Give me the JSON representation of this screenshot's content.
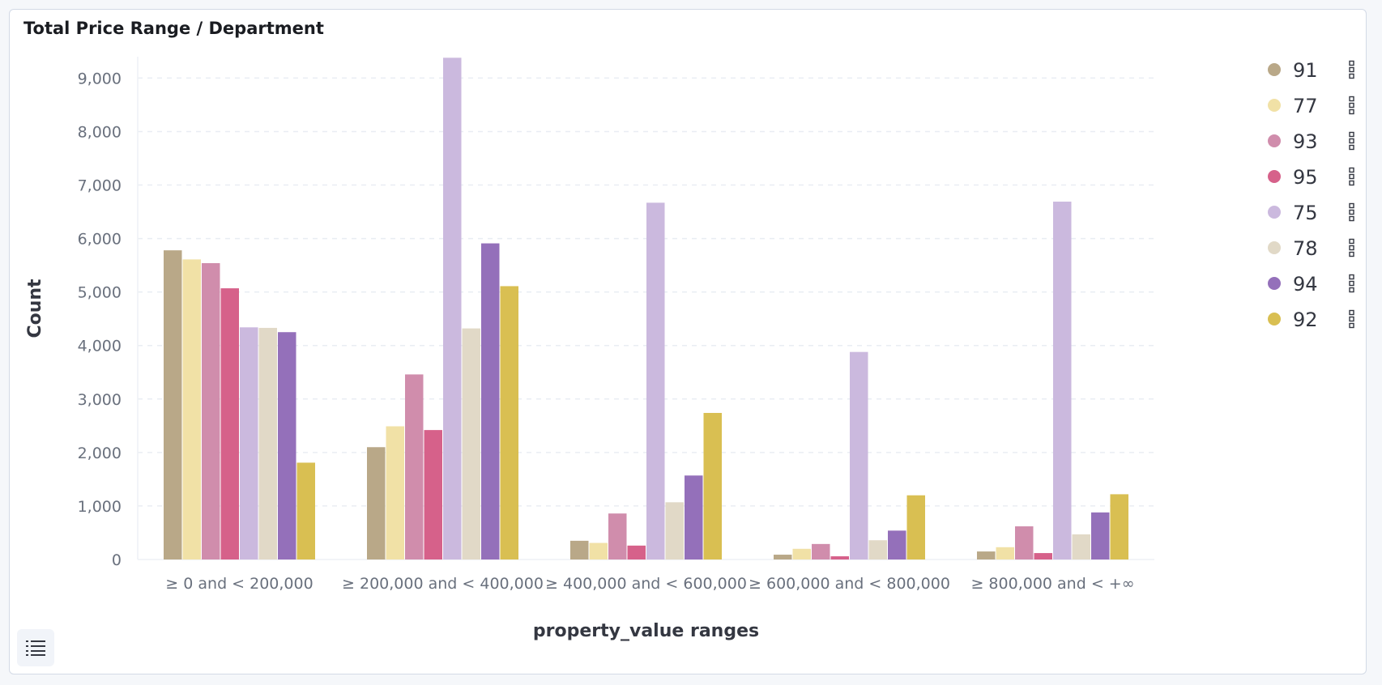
{
  "panel": {
    "title": "Total Price Range / Department"
  },
  "chart_data": {
    "type": "bar",
    "title": "Total Price Range / Department",
    "xlabel": "property_value ranges",
    "ylabel": "Count",
    "ylim": [
      0,
      9400
    ],
    "yticks": [
      0,
      1000,
      2000,
      3000,
      4000,
      5000,
      6000,
      7000,
      8000,
      9000
    ],
    "ytick_labels": [
      "0",
      "1,000",
      "2,000",
      "3,000",
      "4,000",
      "5,000",
      "6,000",
      "7,000",
      "8,000",
      "9,000"
    ],
    "grid": true,
    "legend_position": "right",
    "categories": [
      "≥ 0 and < 200,000",
      "≥ 200,000 and < 400,000",
      "≥ 400,000 and < 600,000",
      "≥ 600,000 and < 800,000",
      "≥ 800,000 and < +∞"
    ],
    "series": [
      {
        "name": "91",
        "color": "#b9a888",
        "values": [
          5780,
          2100,
          350,
          90,
          150
        ]
      },
      {
        "name": "77",
        "color": "#f1e1a6",
        "values": [
          5610,
          2490,
          310,
          200,
          230
        ]
      },
      {
        "name": "93",
        "color": "#d08dac",
        "values": [
          5540,
          3460,
          860,
          290,
          620
        ]
      },
      {
        "name": "95",
        "color": "#d6618a",
        "values": [
          5070,
          2420,
          260,
          60,
          120
        ]
      },
      {
        "name": "75",
        "color": "#cbb9de",
        "values": [
          4340,
          9380,
          6670,
          3880,
          6690
        ]
      },
      {
        "name": "78",
        "color": "#e1d9c7",
        "values": [
          4330,
          4320,
          1070,
          360,
          470
        ]
      },
      {
        "name": "94",
        "color": "#9470ba",
        "values": [
          4250,
          5910,
          1570,
          540,
          880
        ]
      },
      {
        "name": "92",
        "color": "#d9bf52",
        "values": [
          1810,
          5110,
          2740,
          1200,
          1220
        ]
      }
    ]
  },
  "icons": {
    "series_menu": "vertical-ellipsis-icon",
    "legend_toggle": "list-icon"
  }
}
